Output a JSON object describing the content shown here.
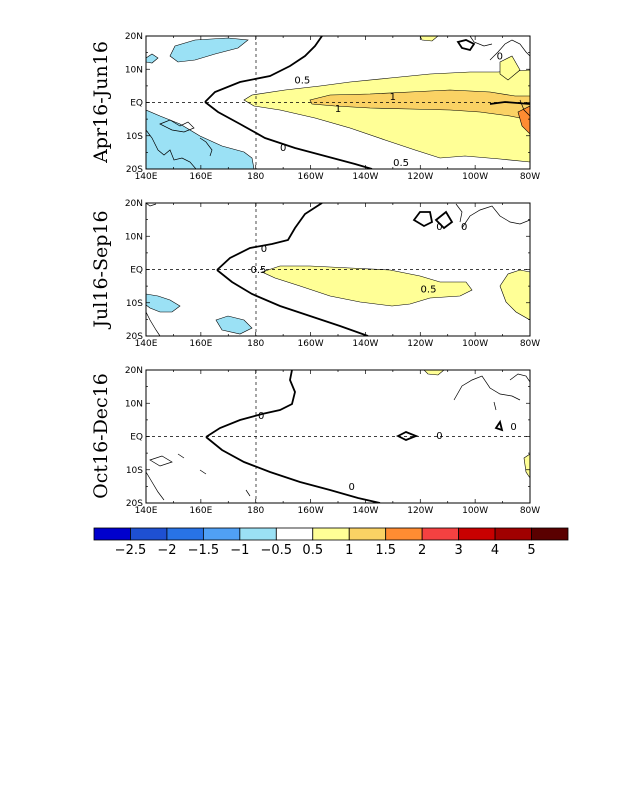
{
  "map": {
    "lon_labels": [
      "140E",
      "160E",
      "180",
      "160W",
      "140W",
      "120W",
      "100W",
      "80W"
    ],
    "lat_labels": [
      "20N",
      "10N",
      "EQ",
      "10S",
      "20S"
    ],
    "panels": [
      {
        "title": "Apr16-Jun16",
        "contour_labels": [
          {
            "text": "0.5",
            "lon": 197,
            "lat": 6.8
          },
          {
            "text": "1",
            "lon": 230,
            "lat": 1.8
          },
          {
            "text": "1",
            "lon": 210,
            "lat": -1.8
          },
          {
            "text": "0.5",
            "lon": 233,
            "lat": -18.0
          },
          {
            "text": "0",
            "lon": 190,
            "lat": -13.5
          },
          {
            "text": "0",
            "lon": 269,
            "lat": 14.0
          }
        ]
      },
      {
        "title": "Jul16-Sep16",
        "contour_labels": [
          {
            "text": "0",
            "lon": 183,
            "lat": 6.3
          },
          {
            "text": "0.5",
            "lon": 181,
            "lat": 0.0
          },
          {
            "text": "0.5",
            "lon": 243,
            "lat": -5.8
          },
          {
            "text": "0",
            "lon": 247,
            "lat": 13.0
          },
          {
            "text": "0",
            "lon": 256,
            "lat": 13.0
          }
        ]
      },
      {
        "title": "Oct16-Dec16",
        "contour_labels": [
          {
            "text": "0",
            "lon": 182,
            "lat": 6.3
          },
          {
            "text": "0",
            "lon": 215,
            "lat": -15.0
          },
          {
            "text": "0",
            "lon": 247,
            "lat": 0.3
          },
          {
            "text": "0",
            "lon": 274,
            "lat": 3.0
          }
        ]
      }
    ],
    "colorbar": {
      "labels": [
        "-2.5",
        "-2",
        "-1.5",
        "-1",
        "-0.5",
        "0.5",
        "1",
        "1.5",
        "2",
        "3",
        "4",
        "5"
      ],
      "colors": [
        "#0000cd",
        "#1e50d2",
        "#2873e6",
        "#50a0f5",
        "#9be1f5",
        "#ffffff",
        "#ffff96",
        "#fad264",
        "#ff8c32",
        "#f54141",
        "#c80000",
        "#a00000",
        "#5a0000"
      ]
    },
    "colors": {
      "positive_light": "#ffff96",
      "positive_mid": "#fad264",
      "positive_strong": "#ff8c32",
      "negative_light": "#9be1f5"
    }
  }
}
